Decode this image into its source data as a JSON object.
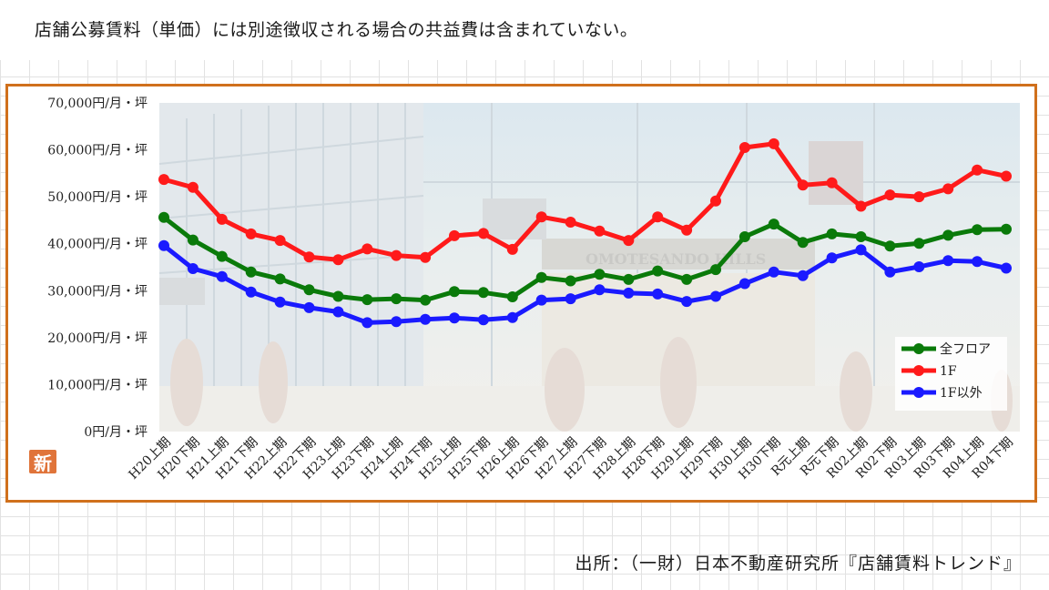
{
  "note": "店舗公募賃料（単価）には別途徴収される場合の共益費は含まれていない。",
  "source": "出所：（一財）日本不動産研究所『店舗賃料トレンド』",
  "badge": "新",
  "photo_sign": "OMOTESANDO HILLS",
  "colors": {
    "all_floors": "#0a7a0a",
    "first_floor": "#ff1a1a",
    "other_floors": "#1a1aff",
    "frame": "#d0701c"
  },
  "chart_data": {
    "type": "line",
    "title": "",
    "xlabel": "",
    "ylabel": "",
    "ylim": [
      0,
      70000
    ],
    "y_ticks": [
      0,
      10000,
      20000,
      30000,
      40000,
      50000,
      60000,
      70000
    ],
    "y_tick_labels": [
      "0円/月・坪",
      "10,000円/月・坪",
      "20,000円/月・坪",
      "30,000円/月・坪",
      "40,000円/月・坪",
      "50,000円/月・坪",
      "60,000円/月・坪",
      "70,000円/月・坪"
    ],
    "categories": [
      "H20上期",
      "H20下期",
      "H21上期",
      "H21下期",
      "H22上期",
      "H22下期",
      "H23上期",
      "H23下期",
      "H24上期",
      "H24下期",
      "H25上期",
      "H25下期",
      "H26上期",
      "H26下期",
      "H27上期",
      "H27下期",
      "H28上期",
      "H28下期",
      "H29上期",
      "H29下期",
      "H30上期",
      "H30下期",
      "R元上期",
      "R元下期",
      "R02上期",
      "R02下期",
      "R03上期",
      "R03下期",
      "R04上期",
      "R04下期"
    ],
    "legend_position": "bottom-right",
    "series": [
      {
        "name": "全フロア",
        "color": "#0a7a0a",
        "values": [
          45600,
          40800,
          37300,
          34000,
          32500,
          30200,
          28800,
          28100,
          28300,
          28000,
          29800,
          29600,
          28700,
          32800,
          32100,
          33500,
          32400,
          34200,
          32400,
          34500,
          41500,
          44200,
          40300,
          42100,
          41500,
          39500,
          40100,
          41800,
          43000,
          43100
        ]
      },
      {
        "name": "1F",
        "color": "#ff1a1a",
        "values": [
          53700,
          52000,
          45200,
          42100,
          40700,
          37200,
          36600,
          38900,
          37500,
          37100,
          41700,
          42200,
          38800,
          45700,
          44600,
          42700,
          40700,
          45700,
          42900,
          49100,
          60500,
          61300,
          52500,
          53000,
          48000,
          50400,
          50000,
          51700,
          55700,
          54400
        ]
      },
      {
        "name": "1F以外",
        "color": "#1a1aff",
        "values": [
          39600,
          34700,
          33000,
          29700,
          27600,
          26400,
          25500,
          23200,
          23400,
          23900,
          24200,
          23800,
          24300,
          28000,
          28300,
          30200,
          29500,
          29300,
          27700,
          28800,
          31500,
          34000,
          33200,
          37000,
          38700,
          34000,
          35100,
          36400,
          36200,
          34800
        ]
      }
    ]
  }
}
